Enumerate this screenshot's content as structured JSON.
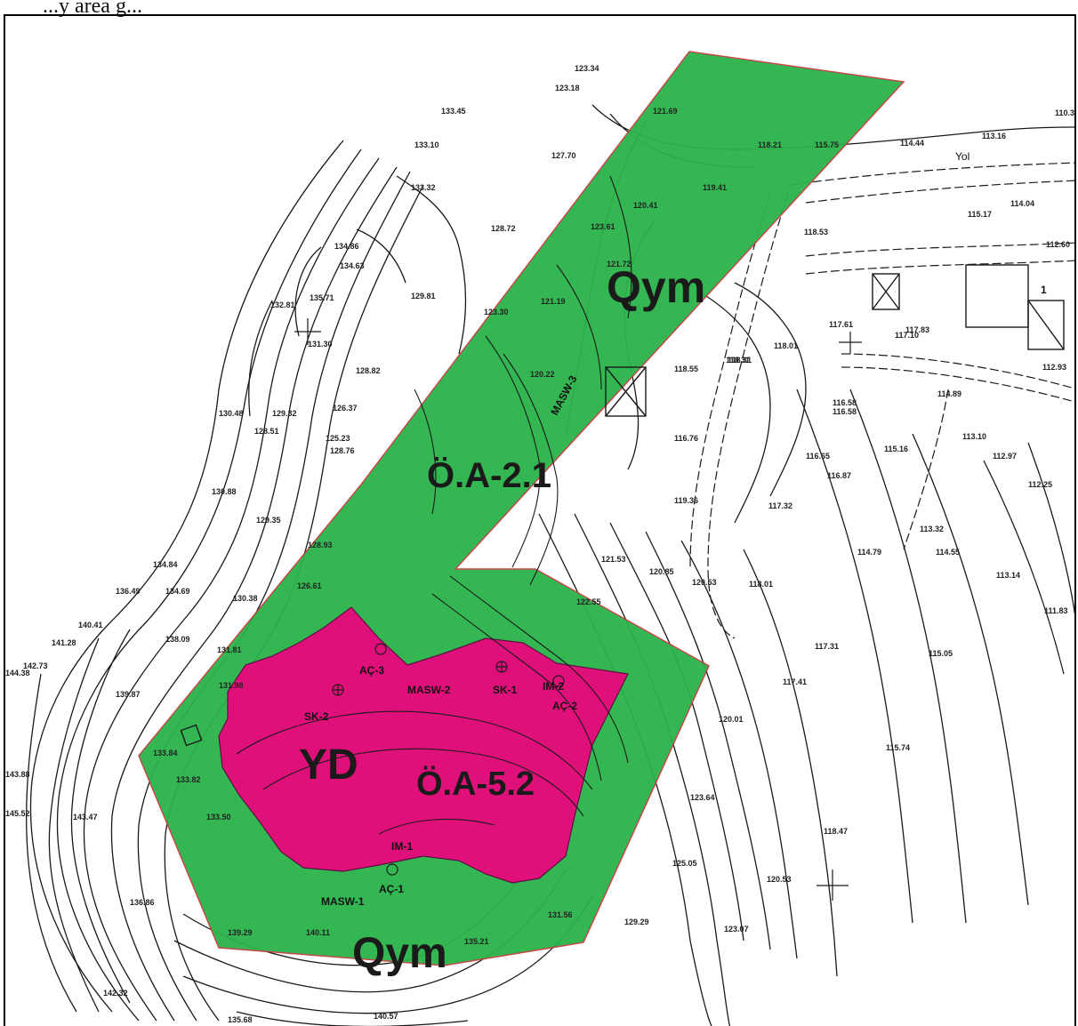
{
  "caption": "...y area g...",
  "colors": {
    "qym_zone": "#2ab34a",
    "yd_zone": "#e0107a",
    "contour": "#1a1a1a",
    "background": "#ffffff"
  },
  "zones": {
    "qym_top": "Qym",
    "qym_bottom": "Qym",
    "yd": "YD",
    "oa_21": "Ö.A-2.1",
    "oa_52": "Ö.A-5.2"
  },
  "labels": {
    "masw1": "MASW-1",
    "masw2": "MASW-2",
    "masw3": "MASW-3",
    "sk1": "SK-1",
    "sk2": "SK-2",
    "ac1": "AÇ-1",
    "ac2": "AÇ-2",
    "ac3": "AÇ-3",
    "im1": "IM-1",
    "im2": "IM-2",
    "yol": "Yol",
    "bldg1": "1"
  },
  "elevations": [
    "123.34",
    "123.18",
    "133.45",
    "133.10",
    "127.70",
    "133.32",
    "128.72",
    "134.86",
    "134.63",
    "132.81",
    "135.71",
    "129.81",
    "123.30",
    "131.30",
    "128.82",
    "130.48",
    "128.51",
    "128.76",
    "126.37",
    "125.23",
    "129.32",
    "128.93",
    "130.88",
    "129.35",
    "126.61",
    "134.84",
    "136.49",
    "134.69",
    "130.38",
    "140.41",
    "141.28",
    "142.73",
    "138.09",
    "131.81",
    "139.87",
    "131.98",
    "133.84",
    "144.38",
    "145.52",
    "143.88",
    "143.47",
    "140.57",
    "142.32",
    "135.68",
    "139.29",
    "140.11",
    "136.86",
    "133.50",
    "133.82",
    "122.55",
    "123.64",
    "125.05",
    "123.07",
    "129.29",
    "131.56",
    "135.21",
    "120.53",
    "120.01",
    "118.47",
    "115.74",
    "117.41",
    "117.31",
    "115.05",
    "113.14",
    "111.83",
    "114.79",
    "116.87",
    "117.32",
    "116.65",
    "118.31",
    "116.58",
    "112.25",
    "115.16",
    "116.76",
    "119.36",
    "120.85",
    "121.53",
    "120.53",
    "118.01",
    "118.53",
    "118.31",
    "118.55",
    "120.22",
    "121.19",
    "121.72",
    "115.75",
    "114.44",
    "113.16",
    "110.3",
    "115.17",
    "114.04",
    "112.60",
    "112.93",
    "114.89",
    "113.10",
    "112.97",
    "113.32",
    "114.55",
    "116.58",
    "117.83",
    "117.61",
    "117.10",
    "118.01",
    "121.69",
    "118.21",
    "119.41",
    "120.41",
    "123.61"
  ]
}
